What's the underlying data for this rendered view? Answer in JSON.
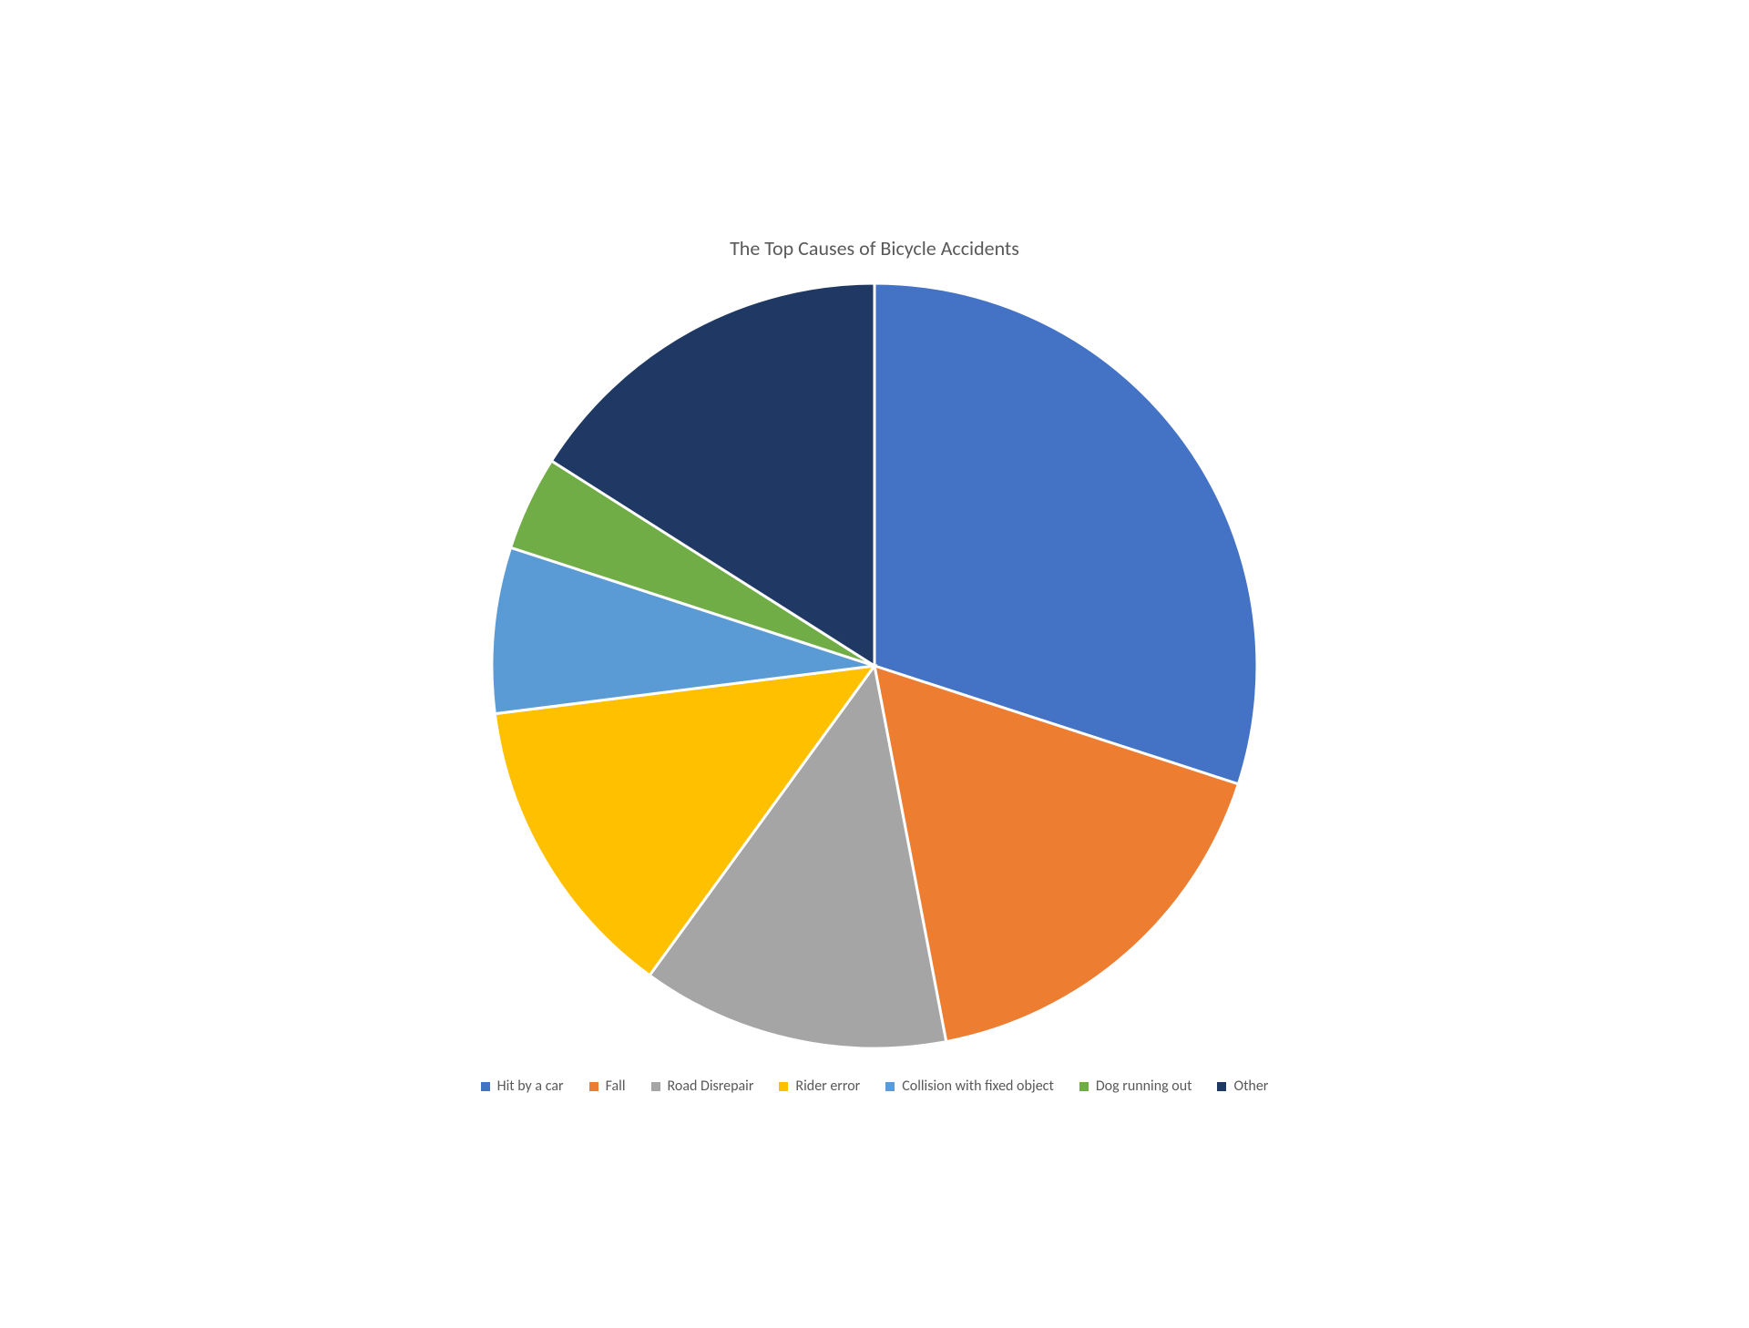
{
  "chart": {
    "type": "pie",
    "title": "The Top Causes of Bicycle Accidents",
    "title_fontsize": 22,
    "title_color": "#595959",
    "background_color": "#ffffff",
    "slice_border_color": "#ffffff",
    "slice_border_width": 3,
    "pie_radius": 420,
    "start_angle_deg": 0,
    "direction": "clockwise",
    "legend_position": "bottom",
    "legend_fontsize": 16,
    "legend_color": "#595959",
    "legend_swatch_size": 10,
    "slices": [
      {
        "label": "Hit by a car",
        "value": 30.0,
        "color": "#4472c4"
      },
      {
        "label": "Fall",
        "value": 17.0,
        "color": "#ed7d31"
      },
      {
        "label": "Road Disrepair",
        "value": 13.0,
        "color": "#a5a5a5"
      },
      {
        "label": "Rider error",
        "value": 13.0,
        "color": "#ffc000"
      },
      {
        "label": "Collision with fixed object",
        "value": 7.0,
        "color": "#5b9bd5"
      },
      {
        "label": "Dog running out",
        "value": 4.0,
        "color": "#70ad47"
      },
      {
        "label": "Other",
        "value": 16.0,
        "color": "#1f3864"
      }
    ]
  }
}
